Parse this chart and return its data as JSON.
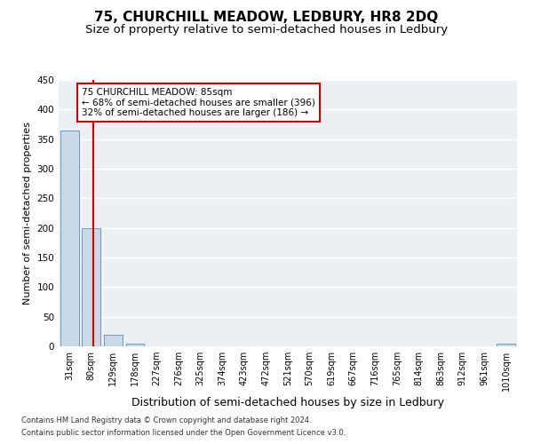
{
  "title": "75, CHURCHILL MEADOW, LEDBURY, HR8 2DQ",
  "subtitle": "Size of property relative to semi-detached houses in Ledbury",
  "xlabel": "Distribution of semi-detached houses by size in Ledbury",
  "ylabel": "Number of semi-detached properties",
  "categories": [
    "31sqm",
    "80sqm",
    "129sqm",
    "178sqm",
    "227sqm",
    "276sqm",
    "325sqm",
    "374sqm",
    "423sqm",
    "472sqm",
    "521sqm",
    "570sqm",
    "619sqm",
    "667sqm",
    "716sqm",
    "765sqm",
    "814sqm",
    "863sqm",
    "912sqm",
    "961sqm",
    "1010sqm"
  ],
  "values": [
    365,
    200,
    20,
    5,
    0,
    0,
    0,
    0,
    0,
    0,
    0,
    0,
    0,
    0,
    0,
    0,
    0,
    0,
    0,
    0,
    5
  ],
  "bar_color": "#c9d9e8",
  "bar_edge_color": "#5b8db8",
  "annotation_text": "75 CHURCHILL MEADOW: 85sqm\n← 68% of semi-detached houses are smaller (396)\n32% of semi-detached houses are larger (186) →",
  "annotation_box_color": "#ffffff",
  "annotation_box_edge": "#cc0000",
  "footer1": "Contains HM Land Registry data © Crown copyright and database right 2024.",
  "footer2": "Contains public sector information licensed under the Open Government Licence v3.0.",
  "ylim": [
    0,
    450
  ],
  "yticks": [
    0,
    50,
    100,
    150,
    200,
    250,
    300,
    350,
    400,
    450
  ],
  "background_color": "#ecf0f5",
  "grid_color": "#ffffff",
  "title_fontsize": 11,
  "subtitle_fontsize": 9.5,
  "xlabel_fontsize": 9,
  "ylabel_fontsize": 8
}
